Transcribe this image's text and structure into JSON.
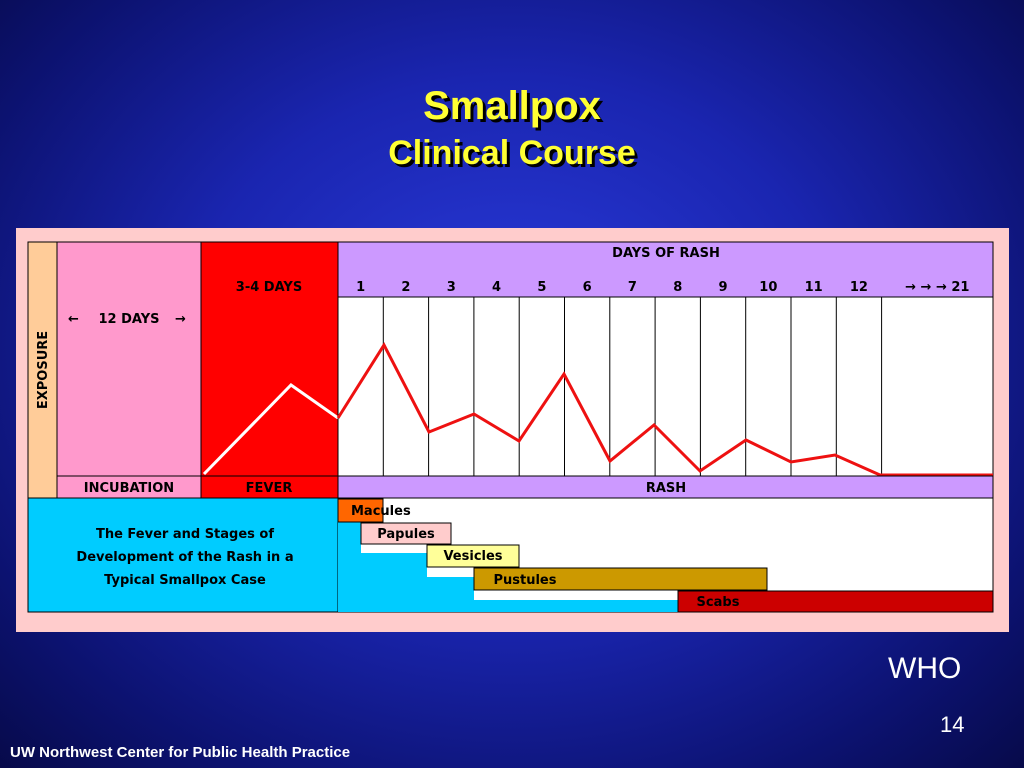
{
  "slide": {
    "title": "Smallpox",
    "subtitle": "Clinical Course",
    "source": "WHO",
    "page_number": "14",
    "footer": "UW Northwest Center for Public Health Practice"
  },
  "diagram": {
    "exposure_label": "EXPOSURE",
    "incubation_span": "12 DAYS",
    "fever_span": "3-4 DAYS",
    "days_header": "DAYS OF RASH",
    "day_labels": [
      "1",
      "2",
      "3",
      "4",
      "5",
      "6",
      "7",
      "8",
      "9",
      "10",
      "11",
      "12",
      "→ → → 21"
    ],
    "phases": {
      "incubation": "INCUBATION",
      "fever": "FEVER",
      "rash": "RASH"
    },
    "caption": [
      "The Fever and Stages of",
      "Development of the Rash in a",
      "Typical Smallpox Case"
    ],
    "stages": [
      {
        "label": "Macules",
        "start_day": 1,
        "end_day": 1,
        "color": "#ff6600"
      },
      {
        "label": "Papules",
        "start_day": 1,
        "end_day": 3,
        "color": "#ffcccc"
      },
      {
        "label": "Vesicles",
        "start_day": 3,
        "end_day": 4,
        "color": "#ffff99"
      },
      {
        "label": "Pustules",
        "start_day": 4,
        "end_day": 10,
        "color": "#cc9900"
      },
      {
        "label": "Scabs",
        "start_day": 8,
        "end_day": 21,
        "color": "#cc0000"
      }
    ],
    "colors": {
      "incubation": "#ff99cc",
      "fever": "#ff0000",
      "rash_header": "#cc99ff",
      "caption_bg": "#00ccff",
      "exposure": "#ffcc99",
      "fever_line": "#ff0000",
      "incubation_line": "#ffffff"
    }
  }
}
